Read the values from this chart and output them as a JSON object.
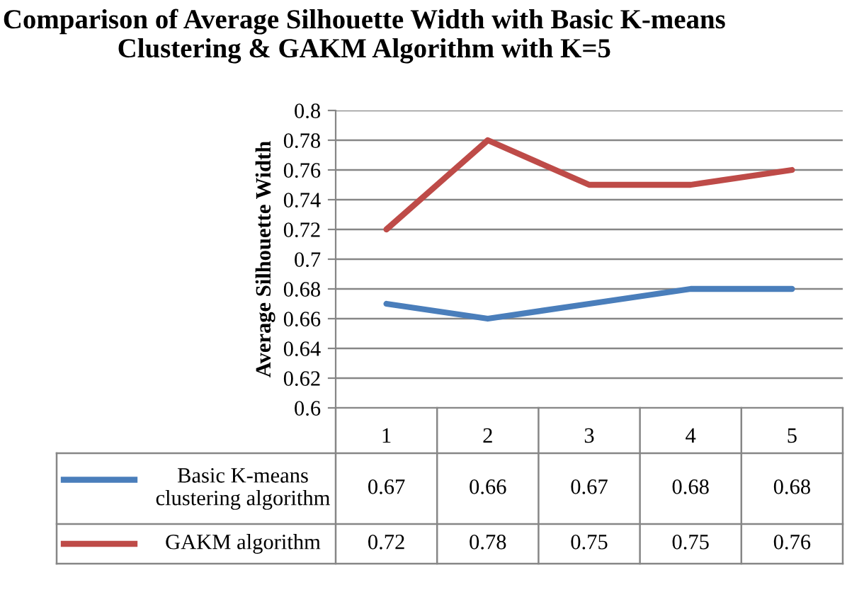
{
  "chart_data": {
    "type": "line",
    "title": "Comparison of Average Silhouette Width with Basic K-means Clustering & GAKM Algorithm with K=5",
    "ylabel": "Average Silhouette Width",
    "categories": [
      "1",
      "2",
      "3",
      "4",
      "5"
    ],
    "series": [
      {
        "name": "Basic K-means clustering algorithm",
        "color": "#4a7ebb",
        "values": [
          0.67,
          0.66,
          0.67,
          0.68,
          0.68
        ],
        "value_labels": [
          "0.67",
          "0.66",
          "0.67",
          "0.68",
          "0.68"
        ]
      },
      {
        "name": "GAKM algorithm",
        "color": "#be4b48",
        "values": [
          0.72,
          0.78,
          0.75,
          0.75,
          0.76
        ],
        "value_labels": [
          "0.72",
          "0.78",
          "0.75",
          "0.75",
          "0.76"
        ]
      }
    ],
    "ylim": [
      0.6,
      0.8
    ],
    "yticks": [
      0.6,
      0.62,
      0.64,
      0.66,
      0.68,
      0.7,
      0.72,
      0.74,
      0.76,
      0.78,
      0.8
    ],
    "grid": "y",
    "legend": "bottom",
    "marker": "none",
    "line_style": "solid"
  }
}
